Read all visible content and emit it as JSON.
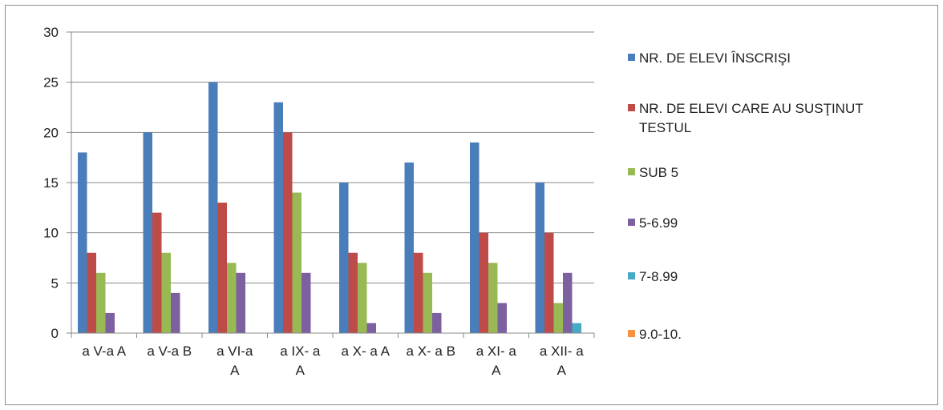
{
  "chart_data": {
    "type": "bar",
    "categories": [
      [
        "a V-a A"
      ],
      [
        "a V-a B"
      ],
      [
        "a VI-a",
        "A"
      ],
      [
        "a IX- a",
        "A"
      ],
      [
        "a X- a A"
      ],
      [
        "a X- a B"
      ],
      [
        "a XI- a",
        "A"
      ],
      [
        "a XII- a",
        "A"
      ]
    ],
    "series": [
      {
        "name": "NR. DE ELEVI ÎNSCRIŞI",
        "color": "#4a7ebb",
        "values": [
          18,
          20,
          25,
          23,
          15,
          17,
          19,
          15
        ]
      },
      {
        "name": "NR. DE ELEVI CARE AU SUSŢINUT TESTUL",
        "color": "#be4b48",
        "values": [
          8,
          12,
          13,
          20,
          8,
          8,
          10,
          10
        ]
      },
      {
        "name": "SUB 5",
        "color": "#98b954",
        "values": [
          6,
          8,
          7,
          14,
          7,
          6,
          7,
          3
        ]
      },
      {
        "name": "5-6.99",
        "color": "#7d60a0",
        "values": [
          2,
          4,
          6,
          6,
          1,
          2,
          3,
          6
        ]
      },
      {
        "name": "7-8.99",
        "color": "#46aac5",
        "values": [
          0,
          0,
          0,
          0,
          0,
          0,
          0,
          1
        ]
      },
      {
        "name": "9.0-10.",
        "color": "#f69240",
        "values": [
          0,
          0,
          0,
          0,
          0,
          0,
          0,
          0
        ]
      }
    ],
    "yticks": [
      "0",
      "5",
      "10",
      "15",
      "20",
      "25",
      "30"
    ],
    "ylim": [
      0,
      30
    ],
    "grid": true,
    "legend_position": "right"
  }
}
